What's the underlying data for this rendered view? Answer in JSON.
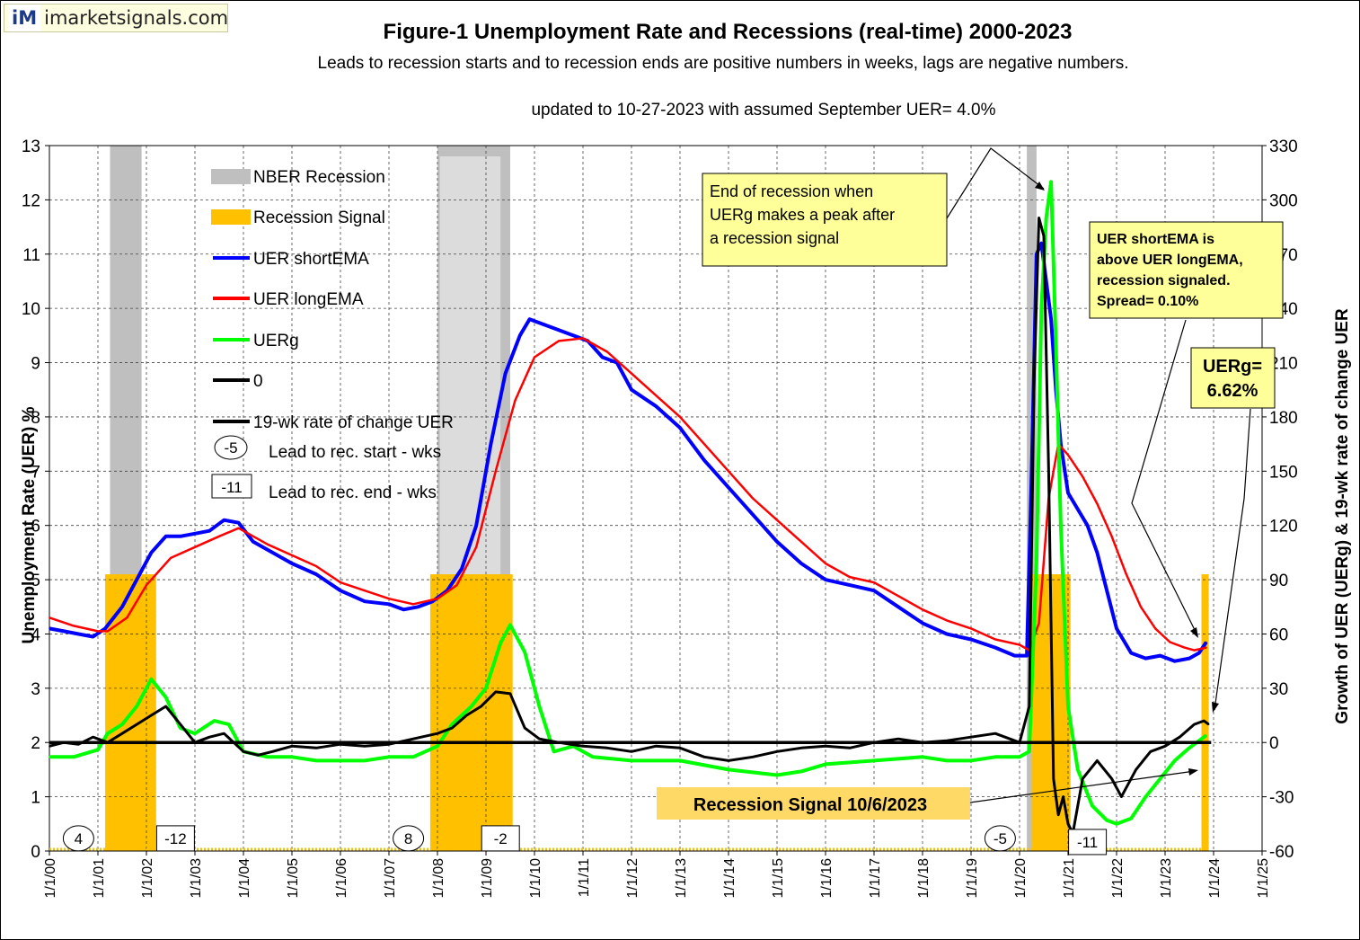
{
  "logo": {
    "mark": "iM",
    "text": "imarketsignals.com"
  },
  "chart_data": {
    "type": "line",
    "title": "Figure-1  Unemployment Rate and Recessions (real-time) 2000-2023",
    "subtitle": "Leads to recession starts and to recession ends are positive numbers in weeks, lags are negative numbers.",
    "updated": "updated to 10-27-2023  with assumed September UER= 4.0%",
    "ylabel_left": "Unemployment Rate (UER) %",
    "ylabel_right": "Growth of UER (UERg) & 19-wk rate of change UER",
    "ylim_left": [
      0,
      13
    ],
    "ylim_right": [
      -60,
      330
    ],
    "xlim": [
      2000,
      2025
    ],
    "yticks_left": [
      "0",
      "1",
      "2",
      "3",
      "4",
      "5",
      "6",
      "7",
      "8",
      "9",
      "10",
      "11",
      "12",
      "13"
    ],
    "yticks_right": [
      "-60",
      "-30",
      "0",
      "30",
      "60",
      "90",
      "120",
      "150",
      "180",
      "210",
      "240",
      "270",
      "300",
      "330"
    ],
    "xticks": [
      "1/1/00",
      "1/1/01",
      "1/1/02",
      "1/1/03",
      "1/1/04",
      "1/1/05",
      "1/1/06",
      "1/1/07",
      "1/1/08",
      "1/1/09",
      "1/1/10",
      "1/1/11",
      "1/1/12",
      "1/1/13",
      "1/1/14",
      "1/1/15",
      "1/1/16",
      "1/1/17",
      "1/1/18",
      "1/1/19",
      "1/1/20",
      "1/1/21",
      "1/1/22",
      "1/1/23",
      "1/1/24",
      "1/1/25"
    ],
    "legend": [
      {
        "label": "NBER Recession",
        "kind": "band",
        "color": "#bfbfbf"
      },
      {
        "label": "Recession Signal",
        "kind": "band",
        "color": "#ffc000"
      },
      {
        "label": "UER shortEMA",
        "kind": "line",
        "color": "#0000ff"
      },
      {
        "label": "UER longEMA",
        "kind": "line",
        "color": "#ff0000"
      },
      {
        "label": "UERg",
        "kind": "line",
        "color": "#00ff00"
      },
      {
        "label": "0",
        "kind": "line",
        "color": "#000000"
      },
      {
        "label": "19-wk rate of change UER",
        "kind": "line",
        "color": "#000000"
      }
    ],
    "legend_markers": [
      {
        "shape": "ellipse",
        "text": "-5",
        "label": "Lead to rec. start - wks"
      },
      {
        "shape": "box",
        "text": "-11",
        "label": "Lead to  rec. end - wks"
      }
    ],
    "nber_recessions": [
      [
        2001.25,
        2001.9
      ],
      [
        2008.0,
        2009.5
      ],
      [
        2020.15,
        2020.35
      ]
    ],
    "recession_signals": [
      [
        2001.15,
        2002.2
      ],
      [
        2007.85,
        2009.55
      ],
      [
        2020.25,
        2021.05
      ],
      [
        2023.75,
        2023.9
      ]
    ],
    "series": [
      {
        "name": "UER shortEMA",
        "axis": "left",
        "color": "#0000ff",
        "x": [
          2000.0,
          2000.3,
          2000.6,
          2000.9,
          2001.15,
          2001.5,
          2001.8,
          2002.1,
          2002.4,
          2002.7,
          2003.0,
          2003.3,
          2003.6,
          2003.9,
          2004.2,
          2004.6,
          2005.0,
          2005.5,
          2006.0,
          2006.5,
          2007.0,
          2007.3,
          2007.6,
          2007.9,
          2008.2,
          2008.5,
          2008.8,
          2009.1,
          2009.4,
          2009.7,
          2009.9,
          2010.2,
          2010.5,
          2010.8,
          2011.1,
          2011.4,
          2011.7,
          2012.0,
          2012.5,
          2013.0,
          2013.5,
          2014.0,
          2014.5,
          2015.0,
          2015.5,
          2016.0,
          2016.5,
          2017.0,
          2017.5,
          2018.0,
          2018.5,
          2019.0,
          2019.5,
          2019.9,
          2020.15,
          2020.25,
          2020.35,
          2020.45,
          2020.55,
          2020.65,
          2020.75,
          2020.85,
          2021.0,
          2021.2,
          2021.4,
          2021.6,
          2021.8,
          2022.0,
          2022.3,
          2022.6,
          2022.9,
          2023.2,
          2023.5,
          2023.7,
          2023.85
        ],
        "values": [
          4.1,
          4.05,
          4.0,
          3.95,
          4.1,
          4.5,
          5.0,
          5.5,
          5.8,
          5.8,
          5.85,
          5.9,
          6.1,
          6.05,
          5.7,
          5.5,
          5.3,
          5.1,
          4.8,
          4.6,
          4.55,
          4.45,
          4.5,
          4.6,
          4.8,
          5.2,
          6.0,
          7.5,
          8.8,
          9.5,
          9.8,
          9.7,
          9.6,
          9.5,
          9.4,
          9.1,
          9.0,
          8.5,
          8.2,
          7.8,
          7.2,
          6.7,
          6.2,
          5.7,
          5.3,
          5.0,
          4.9,
          4.8,
          4.5,
          4.2,
          4.0,
          3.9,
          3.75,
          3.6,
          3.6,
          7.0,
          11.0,
          11.2,
          10.5,
          9.8,
          8.5,
          7.5,
          6.6,
          6.3,
          6.0,
          5.5,
          4.8,
          4.1,
          3.65,
          3.55,
          3.6,
          3.5,
          3.55,
          3.65,
          3.85
        ]
      },
      {
        "name": "UER longEMA",
        "axis": "left",
        "color": "#ff0000",
        "x": [
          2000.0,
          2000.5,
          2001.0,
          2001.2,
          2001.6,
          2002.0,
          2002.5,
          2003.0,
          2003.5,
          2003.9,
          2004.5,
          2005.0,
          2005.5,
          2006.0,
          2006.5,
          2007.0,
          2007.5,
          2008.0,
          2008.4,
          2008.8,
          2009.2,
          2009.6,
          2010.0,
          2010.5,
          2011.0,
          2011.5,
          2012.0,
          2012.5,
          2013.0,
          2013.5,
          2014.0,
          2014.5,
          2015.0,
          2015.5,
          2016.0,
          2016.5,
          2017.0,
          2017.5,
          2018.0,
          2018.5,
          2019.0,
          2019.5,
          2020.0,
          2020.2,
          2020.4,
          2020.6,
          2020.8,
          2021.0,
          2021.3,
          2021.6,
          2021.9,
          2022.2,
          2022.5,
          2022.8,
          2023.1,
          2023.4,
          2023.6,
          2023.85
        ],
        "values": [
          4.3,
          4.15,
          4.05,
          4.05,
          4.3,
          4.9,
          5.4,
          5.6,
          5.8,
          5.95,
          5.65,
          5.45,
          5.25,
          4.95,
          4.8,
          4.65,
          4.55,
          4.65,
          4.9,
          5.6,
          7.0,
          8.3,
          9.1,
          9.4,
          9.45,
          9.2,
          8.8,
          8.4,
          8.0,
          7.5,
          7.0,
          6.5,
          6.1,
          5.7,
          5.3,
          5.05,
          4.95,
          4.7,
          4.45,
          4.25,
          4.1,
          3.9,
          3.8,
          3.7,
          4.2,
          6.5,
          7.5,
          7.3,
          6.9,
          6.4,
          5.8,
          5.1,
          4.5,
          4.1,
          3.85,
          3.75,
          3.7,
          3.75
        ]
      },
      {
        "name": "UERg",
        "axis": "right",
        "color": "#00ff00",
        "x": [
          2000.0,
          2000.5,
          2001.0,
          2001.2,
          2001.5,
          2001.8,
          2002.1,
          2002.4,
          2002.7,
          2003.0,
          2003.4,
          2003.7,
          2004.0,
          2004.5,
          2005.0,
          2005.5,
          2006.0,
          2006.5,
          2007.0,
          2007.5,
          2008.0,
          2008.3,
          2008.7,
          2009.0,
          2009.3,
          2009.5,
          2009.8,
          2010.1,
          2010.4,
          2010.8,
          2011.2,
          2012.0,
          2013.0,
          2014.0,
          2015.0,
          2015.5,
          2016.0,
          2017.0,
          2018.0,
          2018.5,
          2019.0,
          2019.5,
          2020.0,
          2020.2,
          2020.35,
          2020.45,
          2020.55,
          2020.65,
          2020.75,
          2020.85,
          2021.0,
          2021.2,
          2021.5,
          2021.8,
          2022.0,
          2022.3,
          2022.6,
          2022.9,
          2023.2,
          2023.5,
          2023.75,
          2023.85
        ],
        "values": [
          -8,
          -8,
          -4,
          5,
          10,
          20,
          35,
          25,
          8,
          5,
          12,
          10,
          -5,
          -8,
          -8,
          -10,
          -10,
          -10,
          -8,
          -8,
          -2,
          10,
          20,
          30,
          55,
          65,
          50,
          20,
          -5,
          -2,
          -8,
          -10,
          -10,
          -15,
          -18,
          -16,
          -12,
          -10,
          -8,
          -10,
          -10,
          -8,
          -8,
          -5,
          100,
          240,
          290,
          310,
          220,
          120,
          20,
          -15,
          -35,
          -43,
          -45,
          -42,
          -30,
          -20,
          -10,
          -3,
          2,
          4
        ]
      },
      {
        "name": "19-wk rate of change UER",
        "axis": "right",
        "color": "#000000",
        "x": [
          2000.0,
          2000.3,
          2000.6,
          2000.9,
          2001.2,
          2001.5,
          2001.8,
          2002.1,
          2002.4,
          2002.7,
          2003.0,
          2003.3,
          2003.6,
          2004.0,
          2004.3,
          2004.6,
          2005.0,
          2005.5,
          2006.0,
          2006.5,
          2007.0,
          2007.5,
          2008.0,
          2008.3,
          2008.6,
          2008.9,
          2009.2,
          2009.5,
          2009.8,
          2010.1,
          2010.5,
          2011.0,
          2011.5,
          2012.0,
          2012.5,
          2013.0,
          2013.5,
          2014.0,
          2014.5,
          2015.0,
          2015.5,
          2016.0,
          2016.5,
          2017.0,
          2017.5,
          2018.0,
          2018.5,
          2019.0,
          2019.5,
          2020.0,
          2020.2,
          2020.3,
          2020.4,
          2020.5,
          2020.6,
          2020.7,
          2020.8,
          2020.9,
          2021.0,
          2021.1,
          2021.3,
          2021.6,
          2021.9,
          2022.1,
          2022.4,
          2022.7,
          2023.0,
          2023.3,
          2023.6,
          2023.8,
          2023.9
        ],
        "values": [
          -2,
          0,
          -1,
          3,
          0,
          5,
          10,
          15,
          20,
          10,
          0,
          3,
          5,
          -5,
          -7,
          -5,
          -2,
          -3,
          -1,
          -2,
          -1,
          2,
          5,
          8,
          15,
          20,
          28,
          27,
          8,
          2,
          0,
          -2,
          -3,
          -5,
          -2,
          -3,
          -8,
          -10,
          -8,
          -5,
          -3,
          -2,
          -3,
          0,
          2,
          0,
          1,
          3,
          5,
          0,
          20,
          200,
          290,
          280,
          150,
          -20,
          -40,
          -30,
          -45,
          -50,
          -20,
          -10,
          -20,
          -30,
          -15,
          -5,
          -2,
          3,
          10,
          12,
          10
        ]
      }
    ],
    "zero_line": 0,
    "callouts": [
      {
        "id": "end-recession",
        "text": [
          "End of recession when",
          "UERg makes a peak after",
          "a recession signal"
        ]
      },
      {
        "id": "short-above-long",
        "text": [
          "UER shortEMA  is",
          "above UER longEMA,",
          "recession signaled.",
          "Spread= 0.10%"
        ]
      },
      {
        "id": "uerg-value",
        "text": [
          "UERg=",
          "6.62%"
        ]
      },
      {
        "id": "recession-signal-date",
        "text": [
          "Recession Signal 10/6/2023"
        ]
      }
    ],
    "markers": [
      {
        "shape": "ellipse",
        "text": "4",
        "x": 2000.6,
        "y_right": -53
      },
      {
        "shape": "box",
        "text": "-12",
        "x": 2002.6,
        "y_right": -53
      },
      {
        "shape": "ellipse",
        "text": "8",
        "x": 2007.4,
        "y_right": -53
      },
      {
        "shape": "box",
        "text": "-2",
        "x": 2009.3,
        "y_right": -53
      },
      {
        "shape": "ellipse",
        "text": "-5",
        "x": 2019.6,
        "y_right": -53
      },
      {
        "shape": "box",
        "text": "-11",
        "x": 2021.4,
        "y_right": -55
      }
    ]
  }
}
